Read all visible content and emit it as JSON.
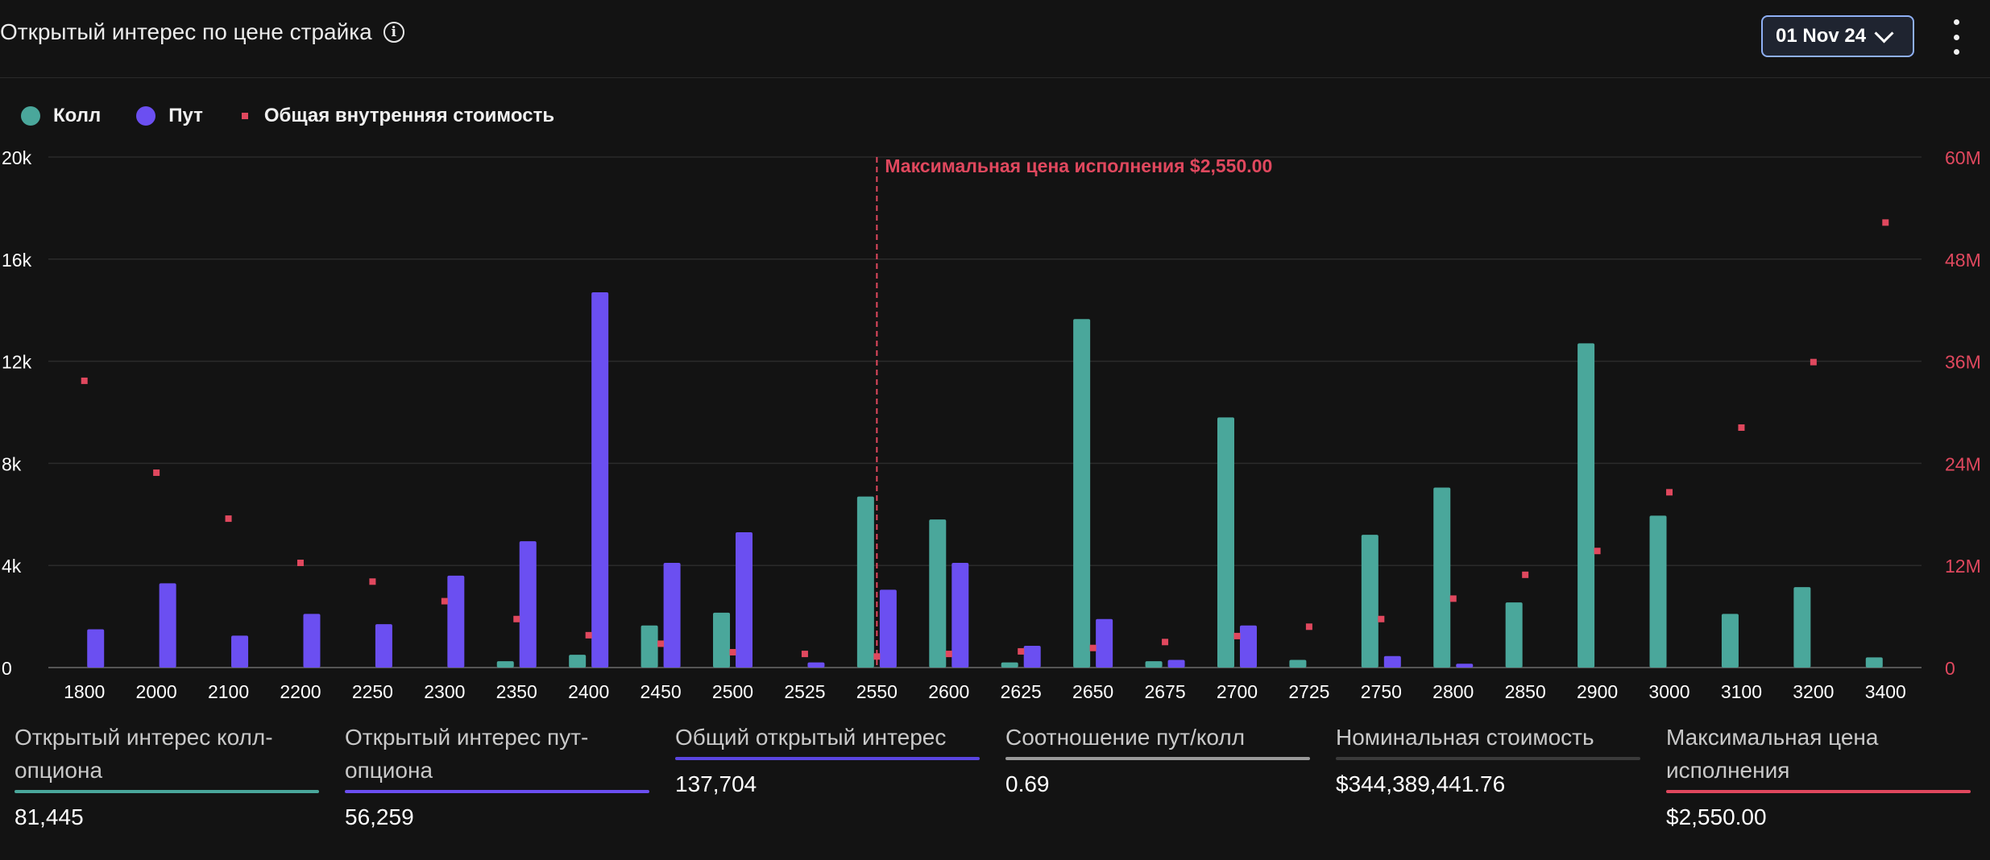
{
  "header": {
    "title": "Открытый интерес по цене страйка",
    "date": "01 Nov 24"
  },
  "legend": {
    "call": "Колл",
    "put": "Пут",
    "intrinsic": "Общая внутренняя стоимость"
  },
  "colors": {
    "call": "#4aa79b",
    "put": "#6b4ff1",
    "intrinsic": "#e0485e",
    "accent_border": "#8fb0f5"
  },
  "chart_data": {
    "type": "bar",
    "categories": [
      "1800",
      "2000",
      "2100",
      "2200",
      "2250",
      "2300",
      "2350",
      "2400",
      "2450",
      "2500",
      "2525",
      "2550",
      "2600",
      "2625",
      "2650",
      "2675",
      "2700",
      "2725",
      "2750",
      "2800",
      "2850",
      "2900",
      "3000",
      "3100",
      "3200",
      "3400"
    ],
    "series": [
      {
        "name": "Колл",
        "axis": "left",
        "values": [
          0,
          0,
          0,
          0,
          0,
          0,
          250,
          500,
          1650,
          2150,
          0,
          6700,
          5800,
          200,
          13650,
          250,
          9800,
          300,
          5200,
          7050,
          2550,
          12700,
          5950,
          2100,
          3150,
          400
        ]
      },
      {
        "name": "Пут",
        "axis": "left",
        "values": [
          1500,
          3300,
          1250,
          2100,
          1700,
          3600,
          4950,
          14700,
          4100,
          5300,
          200,
          3050,
          4100,
          850,
          1900,
          300,
          1650,
          0,
          450,
          150,
          0,
          0,
          0,
          0,
          0,
          0
        ]
      },
      {
        "name": "Общая внутренняя стоимость",
        "type": "scatter",
        "axis": "right",
        "values": [
          33700000,
          22900000,
          17500000,
          12300000,
          10100000,
          7800000,
          5700000,
          3800000,
          2800000,
          1800000,
          1600000,
          1300000,
          1600000,
          1900000,
          2300000,
          3000000,
          3700000,
          4800000,
          5700000,
          8100000,
          10900000,
          13700000,
          20600000,
          28200000,
          35900000,
          52300000
        ]
      }
    ],
    "y_left": {
      "min": 0,
      "max": 20000,
      "ticks": [
        "0",
        "4k",
        "8k",
        "12k",
        "16k",
        "20k"
      ]
    },
    "y_right": {
      "min": 0,
      "max": 60000000,
      "ticks": [
        "0",
        "12M",
        "24M",
        "36M",
        "48M",
        "60M"
      ]
    },
    "max_pain": {
      "category": "2550",
      "label": "Максимальная цена исполнения $2,550.00"
    },
    "grid": true
  },
  "stats": [
    {
      "label": "Открытый интерес колл-опциона",
      "value": "81,445",
      "color": "#4aa79b"
    },
    {
      "label": "Открытый интерес пут-опциона",
      "value": "56,259",
      "color": "#6b4ff1"
    },
    {
      "label": "Общий открытый интерес",
      "value": "137,704",
      "color": "#5a45e0"
    },
    {
      "label": "Соотношение пут/колл",
      "value": "0.69",
      "color": "#9a9a9a"
    },
    {
      "label": "Номинальная стоимость",
      "value": "$344,389,441.76",
      "color": "#3a3a3a"
    },
    {
      "label": "Максимальная цена исполнения",
      "value": "$2,550.00",
      "color": "#e0485e"
    }
  ]
}
